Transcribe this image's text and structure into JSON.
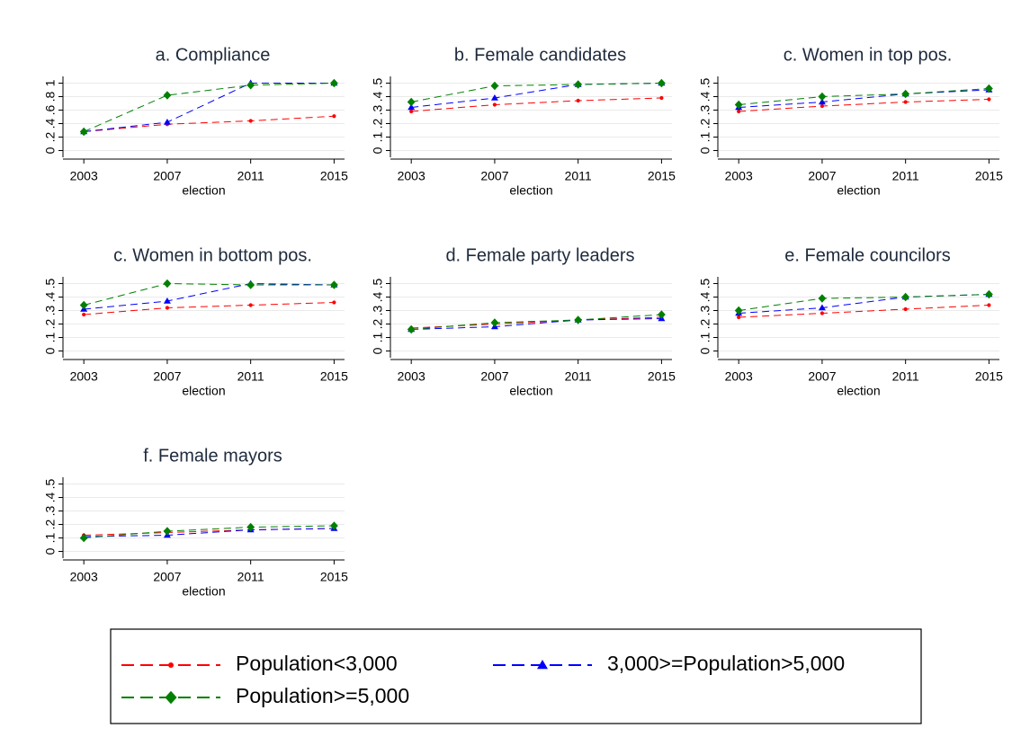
{
  "chart_data": [
    {
      "type": "line",
      "title": "a. Compliance",
      "xlabel": "election",
      "x": [
        2003,
        2007,
        2011,
        2015
      ],
      "xlim": [
        2002,
        2015.5
      ],
      "xticks": [
        2003,
        2007,
        2011,
        2015
      ],
      "ylim": [
        -0.1,
        1.1
      ],
      "yticks": [
        0,
        {
          "value": 0.2,
          "label": ".2"
        },
        {
          "value": 0.4,
          "label": ".4"
        },
        {
          "value": 0.6,
          "label": ".6"
        },
        {
          "value": 0.8,
          "label": ".8"
        },
        1
      ],
      "grid": true,
      "series": [
        {
          "values": [
            0.28,
            0.39,
            0.44,
            0.51
          ]
        },
        {
          "values": [
            0.28,
            0.42,
            1.0,
            1.0
          ]
        },
        {
          "values": [
            0.28,
            0.82,
            0.97,
            1.0
          ]
        }
      ]
    },
    {
      "type": "line",
      "title": "b. Female candidates",
      "xlabel": "election",
      "x": [
        2003,
        2007,
        2011,
        2015
      ],
      "xlim": [
        2002,
        2015.5
      ],
      "xticks": [
        2003,
        2007,
        2011,
        2015
      ],
      "ylim": [
        -0.05,
        0.55
      ],
      "yticks": [
        0,
        {
          "value": 0.1,
          "label": ".1"
        },
        {
          "value": 0.2,
          "label": ".2"
        },
        {
          "value": 0.3,
          "label": ".3"
        },
        {
          "value": 0.4,
          "label": ".4"
        },
        {
          "value": 0.5,
          "label": ".5"
        }
      ],
      "grid": true,
      "series": [
        {
          "values": [
            0.29,
            0.34,
            0.37,
            0.39
          ]
        },
        {
          "values": [
            0.32,
            0.39,
            0.49,
            0.5
          ]
        },
        {
          "values": [
            0.36,
            0.48,
            0.49,
            0.5
          ]
        }
      ]
    },
    {
      "type": "line",
      "title": "c. Women in top pos.",
      "xlabel": "election",
      "x": [
        2003,
        2007,
        2011,
        2015
      ],
      "xlim": [
        2002,
        2015.5
      ],
      "xticks": [
        2003,
        2007,
        2011,
        2015
      ],
      "ylim": [
        -0.05,
        0.55
      ],
      "yticks": [
        0,
        {
          "value": 0.1,
          "label": ".1"
        },
        {
          "value": 0.2,
          "label": ".2"
        },
        {
          "value": 0.3,
          "label": ".3"
        },
        {
          "value": 0.4,
          "label": ".4"
        },
        {
          "value": 0.5,
          "label": ".5"
        }
      ],
      "grid": true,
      "series": [
        {
          "values": [
            0.29,
            0.33,
            0.36,
            0.38
          ]
        },
        {
          "values": [
            0.32,
            0.36,
            0.42,
            0.45
          ]
        },
        {
          "values": [
            0.34,
            0.4,
            0.42,
            0.46
          ]
        }
      ]
    },
    {
      "type": "line",
      "title": "c. Women in bottom pos.",
      "xlabel": "election",
      "x": [
        2003,
        2007,
        2011,
        2015
      ],
      "xlim": [
        2002,
        2015.5
      ],
      "xticks": [
        2003,
        2007,
        2011,
        2015
      ],
      "ylim": [
        -0.05,
        0.55
      ],
      "yticks": [
        0,
        {
          "value": 0.1,
          "label": ".1"
        },
        {
          "value": 0.2,
          "label": ".2"
        },
        {
          "value": 0.3,
          "label": ".3"
        },
        {
          "value": 0.4,
          "label": ".4"
        },
        {
          "value": 0.5,
          "label": ".5"
        }
      ],
      "grid": true,
      "series": [
        {
          "values": [
            0.27,
            0.32,
            0.34,
            0.36
          ]
        },
        {
          "values": [
            0.31,
            0.37,
            0.5,
            0.49
          ]
        },
        {
          "values": [
            0.34,
            0.5,
            0.49,
            0.49
          ]
        }
      ]
    },
    {
      "type": "line",
      "title": "d. Female party leaders",
      "xlabel": "election",
      "x": [
        2003,
        2007,
        2011,
        2015
      ],
      "xlim": [
        2002,
        2015.5
      ],
      "xticks": [
        2003,
        2007,
        2011,
        2015
      ],
      "ylim": [
        -0.05,
        0.55
      ],
      "yticks": [
        0,
        {
          "value": 0.1,
          "label": ".1"
        },
        {
          "value": 0.2,
          "label": ".2"
        },
        {
          "value": 0.3,
          "label": ".3"
        },
        {
          "value": 0.4,
          "label": ".4"
        },
        {
          "value": 0.5,
          "label": ".5"
        }
      ],
      "grid": true,
      "series": [
        {
          "values": [
            0.17,
            0.2,
            0.23,
            0.25
          ]
        },
        {
          "values": [
            0.16,
            0.18,
            0.23,
            0.24
          ]
        },
        {
          "values": [
            0.16,
            0.21,
            0.23,
            0.27
          ]
        }
      ]
    },
    {
      "type": "line",
      "title": "e. Female councilors",
      "xlabel": "election",
      "x": [
        2003,
        2007,
        2011,
        2015
      ],
      "xlim": [
        2002,
        2015.5
      ],
      "xticks": [
        2003,
        2007,
        2011,
        2015
      ],
      "ylim": [
        -0.05,
        0.55
      ],
      "yticks": [
        0,
        {
          "value": 0.1,
          "label": ".1"
        },
        {
          "value": 0.2,
          "label": ".2"
        },
        {
          "value": 0.3,
          "label": ".3"
        },
        {
          "value": 0.4,
          "label": ".4"
        },
        {
          "value": 0.5,
          "label": ".5"
        }
      ],
      "grid": true,
      "series": [
        {
          "values": [
            0.25,
            0.28,
            0.31,
            0.34
          ]
        },
        {
          "values": [
            0.28,
            0.32,
            0.4,
            0.42
          ]
        },
        {
          "values": [
            0.3,
            0.39,
            0.4,
            0.42
          ]
        }
      ]
    },
    {
      "type": "line",
      "title": "f. Female mayors",
      "xlabel": "election",
      "x": [
        2003,
        2007,
        2011,
        2015
      ],
      "xlim": [
        2002,
        2015.5
      ],
      "xticks": [
        2003,
        2007,
        2011,
        2015
      ],
      "ylim": [
        -0.05,
        0.55
      ],
      "yticks": [
        0,
        {
          "value": 0.1,
          "label": ".1"
        },
        {
          "value": 0.2,
          "label": ".2"
        },
        {
          "value": 0.3,
          "label": ".3"
        },
        {
          "value": 0.4,
          "label": ".4"
        },
        {
          "value": 0.5,
          "label": ".5"
        }
      ],
      "grid": true,
      "series": [
        {
          "values": [
            0.12,
            0.14,
            0.16,
            0.17
          ]
        },
        {
          "values": [
            0.11,
            0.12,
            0.16,
            0.17
          ]
        },
        {
          "values": [
            0.1,
            0.15,
            0.18,
            0.19
          ]
        }
      ]
    }
  ],
  "legend": {
    "entries": [
      {
        "name": "Population<3,000",
        "color": "#ff0000",
        "marker": "circle"
      },
      {
        "name": "3,000>=Population>5,000",
        "color": "#0000ff",
        "marker": "triangle"
      },
      {
        "name": "Population>=5,000",
        "color": "#008000",
        "marker": "diamond"
      }
    ]
  }
}
